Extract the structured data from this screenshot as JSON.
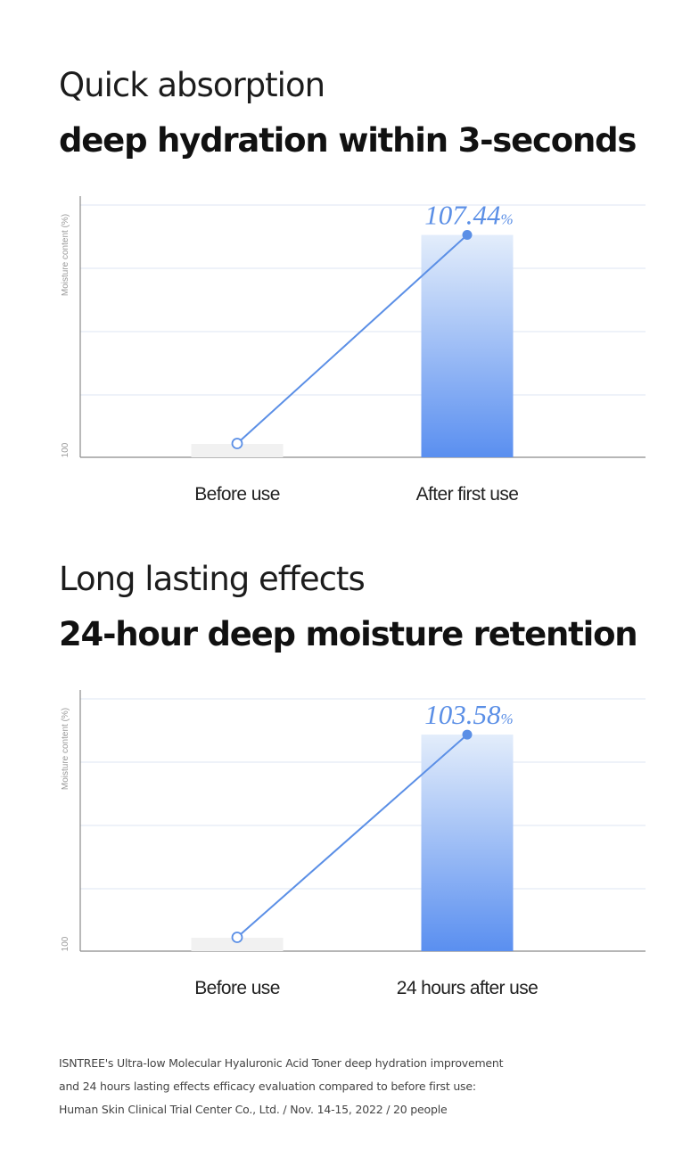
{
  "section1": {
    "heading_light": "Quick absorption",
    "heading_bold": "deep hydration within 3-seconds"
  },
  "section2": {
    "heading_light": "Long lasting effects",
    "heading_bold": "24-hour deep moisture retention"
  },
  "colors": {
    "accent": "#5b8fe6",
    "bar_top": "#e3edfb",
    "bar_bottom": "#5a8ff0",
    "before_bar": "#f1f1f1",
    "grid": "#dde6f3",
    "axis": "#8a8a8a"
  },
  "chart_data": [
    {
      "type": "bar",
      "ylabel": "Moisture content (%)",
      "ytick": "100",
      "categories": [
        "Before use",
        "After first use"
      ],
      "values": [
        100,
        107.44
      ],
      "ylim": [
        100,
        108.5
      ],
      "data_label_number": "107.44",
      "data_label_unit": "%",
      "grid": true,
      "overlay_line": true
    },
    {
      "type": "bar",
      "ylabel": "Moisture content (%)",
      "ytick": "100",
      "categories": [
        "Before use",
        "24 hours after use"
      ],
      "values": [
        100,
        103.58
      ],
      "ylim": [
        100,
        104.2
      ],
      "data_label_number": "103.58",
      "data_label_unit": "%",
      "grid": true,
      "overlay_line": true
    }
  ],
  "footnote": {
    "line1": "ISNTREE's Ultra-low Molecular Hyaluronic Acid Toner deep hydration improvement",
    "line2": "and 24 hours lasting effects efficacy evaluation compared to before first use:",
    "line3": "Human Skin Clinical Trial Center Co., Ltd. / Nov. 14-15, 2022 / 20 people"
  }
}
